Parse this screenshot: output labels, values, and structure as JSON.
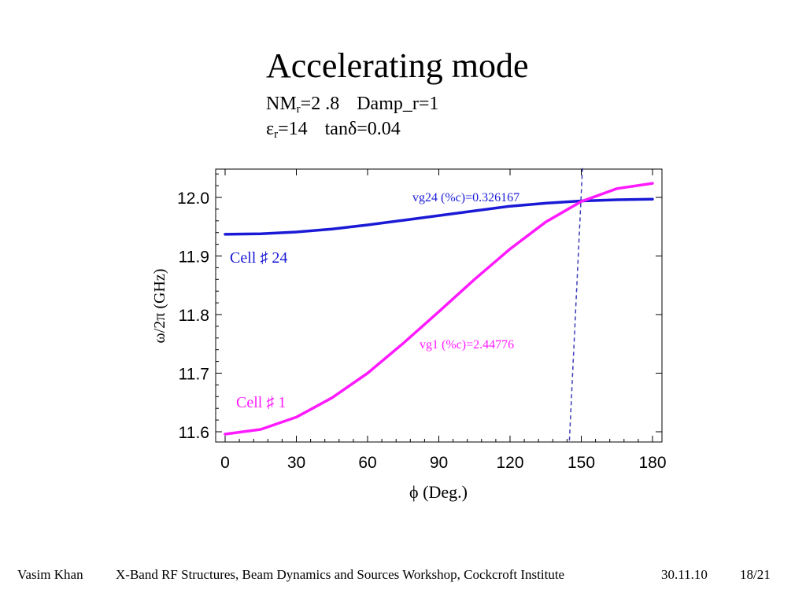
{
  "slide": {
    "title": "Accelerating mode",
    "params": {
      "nm_label": "NM",
      "nm_sub": "r",
      "nm_value": "=2 .8",
      "damp": "Damp_r=1",
      "eps_label": "ε",
      "eps_sub": "r",
      "eps_value": "=14",
      "tan": "tanδ=0.04"
    }
  },
  "footer": {
    "author": "Vasim Khan",
    "event": "X-Band RF Structures, Beam Dynamics and Sources Workshop, Cockcroft Institute",
    "date": "30.11.10",
    "page": "18/21"
  },
  "colors": {
    "cell24": "#1a1ad6",
    "cell1": "#ff1aff",
    "dashed": "#3b3bb5",
    "axis": "#000000"
  },
  "chart_data": {
    "type": "line",
    "xlabel": "ϕ (Deg.)",
    "ylabel": "ω/2π (GHz)",
    "xlim": [
      -7,
      185
    ],
    "ylim": [
      11.585,
      12.05
    ],
    "xticks": [
      0,
      30,
      60,
      90,
      120,
      150,
      180
    ],
    "yticks": [
      11.6,
      11.7,
      11.8,
      11.9,
      12.0
    ],
    "ytick_labels": [
      "11.6",
      "11.7",
      "11.8",
      "11.9",
      "12.0"
    ],
    "series": [
      {
        "name": "Cell ♯ 24",
        "color": "#1a1ad6",
        "x": [
          0,
          15,
          30,
          45,
          60,
          75,
          90,
          105,
          120,
          135,
          150,
          165,
          180
        ],
        "y": [
          11.937,
          11.938,
          11.941,
          11.946,
          11.953,
          11.961,
          11.969,
          11.977,
          11.985,
          11.99,
          11.994,
          11.996,
          11.997
        ]
      },
      {
        "name": "Cell ♯ 1",
        "color": "#ff1aff",
        "x": [
          0,
          15,
          30,
          45,
          60,
          75,
          90,
          105,
          120,
          135,
          150,
          165,
          180
        ],
        "y": [
          11.596,
          11.604,
          11.625,
          11.658,
          11.7,
          11.751,
          11.805,
          11.86,
          11.912,
          11.958,
          11.993,
          12.015,
          12.024
        ]
      }
    ],
    "dashed_line": {
      "x": [
        145,
        150.5
      ],
      "y": [
        11.585,
        12.05
      ]
    },
    "annotations": {
      "vg24": "vg24 (%c)=0.326167",
      "vg1": "vg1 (%c)=2.44776",
      "cell24": "Cell ♯ 24",
      "cell1": "Cell ♯ 1"
    }
  }
}
